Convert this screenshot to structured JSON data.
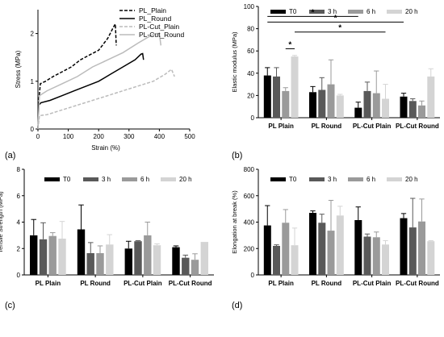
{
  "panel_labels": [
    "(a)",
    "(b)",
    "(c)",
    "(d)"
  ],
  "chart_data": [
    {
      "panel": "(a)",
      "type": "line",
      "xlabel": "Strain (%)",
      "ylabel": "Stress (MPa)",
      "xlim": [
        0,
        500
      ],
      "ylim": [
        0,
        2.5
      ],
      "xticks": [
        0,
        100,
        200,
        300,
        400,
        500
      ],
      "yticks": [
        0,
        1,
        2
      ],
      "legend_position": "top-right",
      "series": [
        {
          "name": "PL_Plain",
          "color": "#000000",
          "dash": "dashed",
          "x": [
            0,
            3,
            8,
            25,
            50,
            80,
            110,
            140,
            170,
            200,
            230,
            250,
            255,
            258
          ],
          "y": [
            0,
            0.6,
            0.95,
            1.0,
            1.1,
            1.2,
            1.3,
            1.45,
            1.55,
            1.65,
            1.9,
            2.15,
            2.2,
            1.75
          ]
        },
        {
          "name": "PL_Round",
          "color": "#000000",
          "dash": "solid",
          "x": [
            0,
            3,
            10,
            40,
            80,
            120,
            160,
            200,
            240,
            280,
            320,
            340,
            345,
            348
          ],
          "y": [
            0,
            0.5,
            0.55,
            0.6,
            0.7,
            0.8,
            0.9,
            1.0,
            1.15,
            1.3,
            1.45,
            1.57,
            1.58,
            1.45
          ]
        },
        {
          "name": "PL-Cut_Plain",
          "color": "#bbbbbb",
          "dash": "dashed",
          "x": [
            0,
            5,
            30,
            80,
            130,
            180,
            230,
            280,
            330,
            380,
            420,
            440,
            450
          ],
          "y": [
            0,
            0.28,
            0.3,
            0.4,
            0.5,
            0.6,
            0.7,
            0.8,
            0.9,
            1.0,
            1.15,
            1.25,
            1.1
          ]
        },
        {
          "name": "PL-Cut_Round",
          "color": "#bbbbbb",
          "dash": "solid",
          "x": [
            0,
            5,
            30,
            80,
            130,
            180,
            230,
            280,
            330,
            370,
            390,
            400,
            405
          ],
          "y": [
            0,
            0.7,
            0.8,
            0.95,
            1.1,
            1.3,
            1.45,
            1.6,
            1.8,
            1.95,
            2.0,
            2.0,
            1.75
          ]
        }
      ]
    },
    {
      "panel": "(b)",
      "type": "bar",
      "ylabel": "Elastic modulus (MPa)",
      "ylim": [
        0,
        100
      ],
      "yticks": [
        0,
        20,
        40,
        60,
        80,
        100
      ],
      "categories": [
        "PL Plain",
        "PL Round",
        "PL-Cut Plain",
        "PL-Cut Round"
      ],
      "legend_position": "top",
      "series": [
        {
          "name": "T0",
          "color": "#000000",
          "values": [
            38,
            23,
            9,
            19
          ],
          "errors": [
            7,
            5,
            5,
            3
          ]
        },
        {
          "name": "3 h",
          "color": "#595959",
          "values": [
            37,
            25,
            24,
            15
          ],
          "errors": [
            8,
            11,
            8,
            2
          ]
        },
        {
          "name": "6 h",
          "color": "#9a9a9a",
          "values": [
            24,
            30,
            22,
            11
          ],
          "errors": [
            3,
            22,
            20,
            4
          ]
        },
        {
          "name": "20 h",
          "color": "#d4d4d4",
          "values": [
            55,
            20,
            17,
            37
          ],
          "errors": [
            1,
            1,
            13,
            7
          ]
        }
      ],
      "significance": [
        {
          "label": "*",
          "from": [
            0,
            0
          ],
          "to": [
            2,
            0
          ]
        },
        {
          "label": "*",
          "from": [
            0,
            0
          ],
          "to": [
            3,
            0
          ]
        },
        {
          "label": "*",
          "from": [
            0,
            3
          ],
          "to": [
            2,
            3
          ]
        },
        {
          "label": "*",
          "from": [
            0,
            2
          ],
          "to": [
            0,
            3
          ]
        }
      ]
    },
    {
      "panel": "(c)",
      "type": "bar",
      "ylabel": "Tensile Strength (MPa)",
      "ylim": [
        0,
        8
      ],
      "yticks": [
        0,
        2,
        4,
        6,
        8
      ],
      "categories": [
        "PL Plain",
        "PL Round",
        "PL-Cut Plain",
        "PL-Cut Round"
      ],
      "legend_position": "top",
      "series": [
        {
          "name": "T0",
          "color": "#000000",
          "values": [
            3.0,
            3.45,
            2.0,
            2.1
          ],
          "errors": [
            1.2,
            1.85,
            0.55,
            0.1
          ]
        },
        {
          "name": "3 h",
          "color": "#595959",
          "values": [
            2.7,
            1.65,
            2.55,
            1.3
          ],
          "errors": [
            1.25,
            0.8,
            0.05,
            0.2
          ]
        },
        {
          "name": "6 h",
          "color": "#9a9a9a",
          "values": [
            2.95,
            1.65,
            3.0,
            1.15
          ],
          "errors": [
            0.25,
            0.55,
            1.0,
            0.45
          ]
        },
        {
          "name": "20 h",
          "color": "#d4d4d4",
          "values": [
            2.75,
            2.3,
            2.25,
            2.5
          ],
          "errors": [
            1.3,
            0.75,
            0.1,
            0.0
          ]
        }
      ]
    },
    {
      "panel": "(d)",
      "type": "bar",
      "ylabel": "Elongation at break (%)",
      "ylim": [
        0,
        800
      ],
      "yticks": [
        0,
        200,
        400,
        600,
        800
      ],
      "categories": [
        "PL Plain",
        "PL Round",
        "PL-Cut Plain",
        "PL-Cut Round"
      ],
      "legend_position": "top",
      "series": [
        {
          "name": "T0",
          "color": "#000000",
          "values": [
            375,
            470,
            415,
            430
          ],
          "errors": [
            150,
            15,
            100,
            35
          ]
        },
        {
          "name": "3 h",
          "color": "#595959",
          "values": [
            220,
            395,
            290,
            360
          ],
          "errors": [
            8,
            65,
            20,
            220
          ]
        },
        {
          "name": "6 h",
          "color": "#9a9a9a",
          "values": [
            395,
            335,
            285,
            405
          ],
          "errors": [
            100,
            230,
            40,
            170
          ]
        },
        {
          "name": "20 h",
          "color": "#d4d4d4",
          "values": [
            225,
            450,
            230,
            255
          ],
          "errors": [
            130,
            70,
            30,
            5
          ]
        }
      ]
    }
  ]
}
